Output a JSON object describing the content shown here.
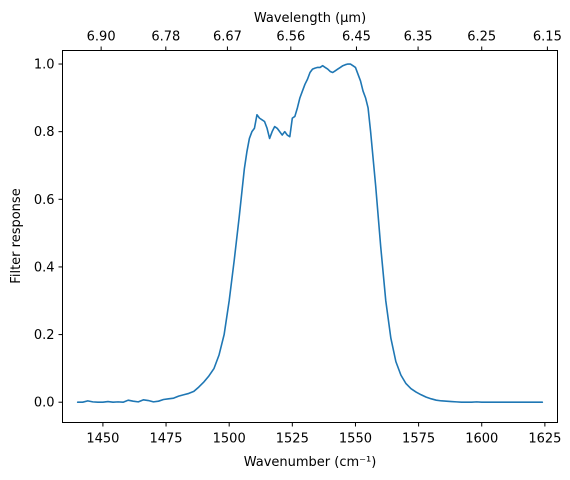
{
  "chart_data": {
    "type": "line",
    "xlabel": "Wavenumber (cm⁻¹)",
    "ylabel": "Filter response",
    "top_xlabel": "Wavelength (μm)",
    "xlim": [
      1434,
      1630
    ],
    "ylim": [
      -0.06,
      1.04
    ],
    "x_ticks": [
      1450,
      1475,
      1500,
      1525,
      1550,
      1575,
      1600,
      1625
    ],
    "y_ticks": [
      0.0,
      0.2,
      0.4,
      0.6,
      0.8,
      1.0
    ],
    "y_tick_labels": [
      "0.0",
      "0.2",
      "0.4",
      "0.6",
      "0.8",
      "1.0"
    ],
    "top_ticks": [
      {
        "label": "6.90",
        "x": 1449.3
      },
      {
        "label": "6.78",
        "x": 1474.9
      },
      {
        "label": "6.67",
        "x": 1499.3
      },
      {
        "label": "6.56",
        "x": 1524.4
      },
      {
        "label": "6.45",
        "x": 1550.4
      },
      {
        "label": "6.35",
        "x": 1574.8
      },
      {
        "label": "6.25",
        "x": 1600.0
      },
      {
        "label": "6.15",
        "x": 1626.0
      }
    ],
    "grid": false,
    "color": "#1f77b4",
    "series": [
      {
        "x": [
          1440,
          1442,
          1444,
          1446,
          1448,
          1450,
          1452,
          1454,
          1456,
          1458,
          1460,
          1462,
          1464,
          1466,
          1468,
          1470,
          1472,
          1474,
          1476,
          1478,
          1480,
          1482,
          1484,
          1486,
          1488,
          1490,
          1492,
          1494,
          1496,
          1498,
          1500,
          1502,
          1504,
          1505,
          1506,
          1507,
          1508,
          1509,
          1510,
          1511,
          1512,
          1513,
          1514,
          1515,
          1516,
          1517,
          1518,
          1519,
          1520,
          1521,
          1522,
          1523,
          1524,
          1525,
          1526,
          1527,
          1528,
          1529,
          1530,
          1531,
          1532,
          1533,
          1534,
          1535,
          1536,
          1537,
          1538,
          1539,
          1540,
          1541,
          1542,
          1543,
          1544,
          1545,
          1546,
          1547,
          1548,
          1549,
          1550,
          1551,
          1552,
          1553,
          1554,
          1555,
          1556,
          1558,
          1560,
          1562,
          1564,
          1566,
          1568,
          1570,
          1572,
          1574,
          1576,
          1578,
          1580,
          1582,
          1584,
          1586,
          1588,
          1590,
          1592,
          1594,
          1596,
          1598,
          1600,
          1602,
          1604,
          1606,
          1608,
          1610,
          1612,
          1614,
          1616,
          1618,
          1620,
          1622,
          1624
        ],
        "y": [
          0.0,
          0.0,
          0.004,
          0.001,
          0.0,
          0.0,
          0.002,
          0.0,
          0.001,
          0.0,
          0.006,
          0.003,
          0.001,
          0.007,
          0.005,
          0.001,
          0.003,
          0.008,
          0.01,
          0.012,
          0.018,
          0.022,
          0.026,
          0.032,
          0.045,
          0.06,
          0.078,
          0.1,
          0.14,
          0.2,
          0.3,
          0.42,
          0.55,
          0.62,
          0.69,
          0.74,
          0.78,
          0.8,
          0.81,
          0.85,
          0.84,
          0.835,
          0.83,
          0.81,
          0.78,
          0.8,
          0.815,
          0.81,
          0.8,
          0.79,
          0.8,
          0.79,
          0.785,
          0.84,
          0.845,
          0.87,
          0.9,
          0.92,
          0.94,
          0.955,
          0.975,
          0.985,
          0.988,
          0.99,
          0.99,
          0.995,
          0.99,
          0.985,
          0.978,
          0.975,
          0.98,
          0.985,
          0.99,
          0.995,
          0.998,
          1.0,
          1.0,
          0.995,
          0.99,
          0.97,
          0.95,
          0.92,
          0.9,
          0.87,
          0.8,
          0.64,
          0.46,
          0.3,
          0.19,
          0.12,
          0.08,
          0.055,
          0.04,
          0.03,
          0.022,
          0.015,
          0.01,
          0.006,
          0.004,
          0.003,
          0.002,
          0.001,
          0.0,
          0.0,
          0.0,
          0.001,
          0.0,
          0.0,
          0.0,
          0.0,
          0.0,
          0.0,
          0.0,
          0.0,
          0.0,
          0.0,
          0.0,
          0.0,
          0.0
        ]
      }
    ]
  }
}
